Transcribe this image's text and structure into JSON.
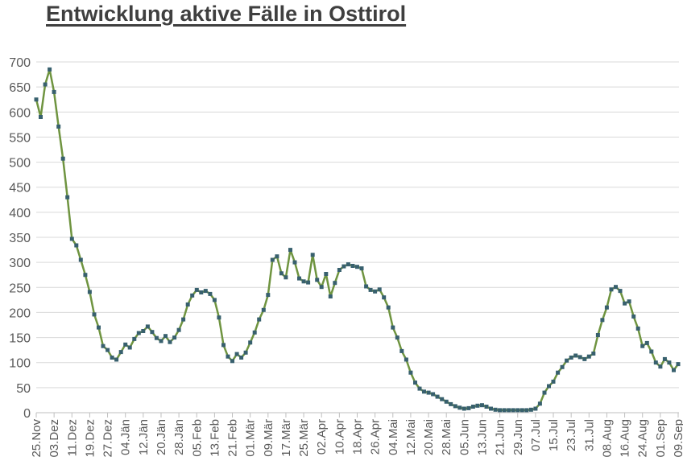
{
  "chart_data": {
    "type": "line",
    "title": "Entwicklung aktive Fälle in Osttirol",
    "xlabel": "",
    "ylabel": "",
    "ylim": [
      0,
      700
    ],
    "y_tick_step": 50,
    "y_tick_labels": [
      "0",
      "50",
      "100",
      "150",
      "200",
      "250",
      "300",
      "350",
      "400",
      "450",
      "500",
      "550",
      "600",
      "650",
      "700"
    ],
    "x_tick_labels": [
      "25.Nov",
      "03.Dez",
      "11.Dez",
      "19.Dez",
      "27.Dez",
      "04.Jän",
      "12.Jän",
      "20.Jän",
      "28.Jän",
      "05.Feb",
      "13.Feb",
      "21.Feb",
      "01.Mär",
      "09.Mär",
      "17.Mär",
      "25.Mär",
      "02.Apr",
      "10.Apr",
      "18.Apr",
      "26.Apr",
      "04.Mai",
      "12.Mai",
      "20.Mai",
      "28.Mai",
      "05.Jun",
      "13.Jun",
      "21.Jun",
      "29.Jun",
      "07.Jul",
      "15.Jul",
      "23.Jul",
      "31.Jul",
      "08.Aug",
      "16.Aug",
      "24.Aug",
      "01.Sep",
      "09.Sep"
    ],
    "x_tick_every_n_points": 4,
    "sample_interval_days": 2,
    "grid": "horizontal",
    "legend_position": "none",
    "marker_shape": "square",
    "values": [
      625,
      590,
      655,
      685,
      640,
      571,
      507,
      430,
      347,
      334,
      305,
      275,
      241,
      196,
      170,
      133,
      125,
      110,
      106,
      121,
      136,
      130,
      147,
      159,
      163,
      172,
      161,
      149,
      143,
      153,
      141,
      150,
      165,
      186,
      216,
      234,
      245,
      240,
      243,
      237,
      225,
      190,
      135,
      112,
      103,
      117,
      110,
      120,
      140,
      160,
      186,
      205,
      235,
      305,
      312,
      278,
      270,
      325,
      300,
      268,
      262,
      260,
      315,
      265,
      251,
      277,
      232,
      259,
      285,
      292,
      296,
      293,
      291,
      288,
      252,
      245,
      242,
      246,
      230,
      210,
      170,
      150,
      123,
      106,
      80,
      60,
      48,
      42,
      40,
      37,
      32,
      27,
      22,
      17,
      13,
      10,
      8,
      9,
      12,
      14,
      15,
      12,
      8,
      6,
      5,
      5,
      5,
      5,
      5,
      5,
      5,
      6,
      8,
      18,
      40,
      53,
      62,
      80,
      91,
      104,
      110,
      114,
      111,
      107,
      112,
      118,
      155,
      185,
      210,
      246,
      251,
      243,
      218,
      222,
      192,
      168,
      133,
      139,
      122,
      100,
      92,
      107,
      100,
      85,
      97
    ]
  },
  "colors": {
    "line": "#6f9440",
    "marker": "#38606e",
    "grid": "#d9d9d9",
    "axis": "#bfbfbf",
    "tick_text": "#595959",
    "title_text": "#3f3f3f"
  }
}
